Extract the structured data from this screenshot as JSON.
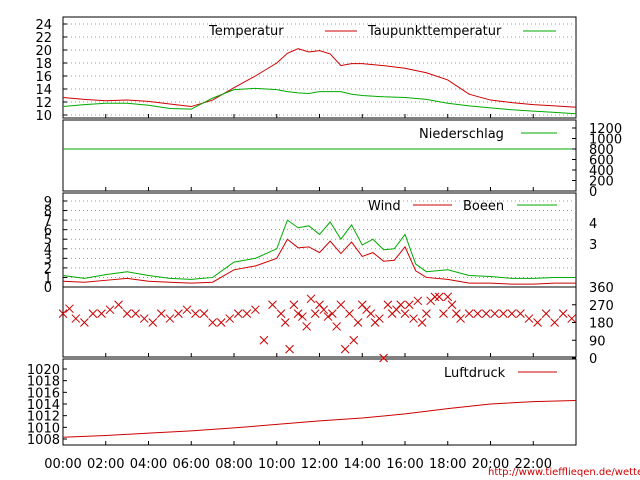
{
  "colors": {
    "red": "#cc0000",
    "green": "#00aa00",
    "grid": "#999999",
    "cross": "#cc0000"
  },
  "source_text": "http://www.tiefflieqen.de/wetter/",
  "x_axis": {
    "ticks": [
      "00:00",
      "02:00",
      "04:00",
      "06:00",
      "08:00",
      "10:00",
      "12:00",
      "14:00",
      "16:00",
      "18:00",
      "20:00",
      "22:00"
    ],
    "tick_hours": [
      0,
      2,
      4,
      6,
      8,
      10,
      12,
      14,
      16,
      18,
      20,
      22
    ],
    "range_hours": [
      0,
      24
    ]
  },
  "chart_data": [
    {
      "type": "line",
      "panel": "temperature",
      "yticks": [
        "10",
        "12",
        "14",
        "16",
        "18",
        "20",
        "22",
        "24"
      ],
      "ylim": [
        9,
        25
      ],
      "legend_placement": "top-right",
      "x": [
        0,
        1,
        2,
        3,
        4,
        5,
        6,
        7,
        8,
        9,
        10,
        10.5,
        11,
        11.5,
        12,
        12.5,
        13,
        13.5,
        14,
        15,
        16,
        17,
        18,
        19,
        20,
        21,
        22,
        23,
        24
      ],
      "series": [
        {
          "name": "Temperatur",
          "color_key": "red",
          "values": [
            12.7,
            12.4,
            12.2,
            12.3,
            12.1,
            11.7,
            11.3,
            12.3,
            14.2,
            16.0,
            18.0,
            19.5,
            20.2,
            19.7,
            19.9,
            19.4,
            17.6,
            17.9,
            17.9,
            17.6,
            17.2,
            16.5,
            15.4,
            13.2,
            12.3,
            11.9,
            11.6,
            11.4,
            11.2
          ]
        },
        {
          "name": "Taupunkttemperatur",
          "color_key": "green",
          "values": [
            11.3,
            11.6,
            11.8,
            11.8,
            11.5,
            11.0,
            10.9,
            12.6,
            13.9,
            14.1,
            13.9,
            13.6,
            13.4,
            13.3,
            13.6,
            13.6,
            13.6,
            13.2,
            13.0,
            12.8,
            12.7,
            12.4,
            11.8,
            11.4,
            11.1,
            10.8,
            10.6,
            10.4,
            10.2
          ]
        }
      ]
    },
    {
      "type": "line",
      "panel": "precipitation",
      "yticks": [
        "0",
        "200",
        "400",
        "600",
        "800",
        "1000",
        "1200"
      ],
      "ylim": [
        0,
        1300
      ],
      "legend_placement": "top-right",
      "x": [
        0,
        24
      ],
      "series": [
        {
          "name": "Niederschlag",
          "color_key": "green",
          "values": [
            800,
            800
          ]
        }
      ]
    },
    {
      "type": "line",
      "panel": "wind",
      "yticks": [
        "0",
        "1",
        "2",
        "3",
        "4",
        "5",
        "6",
        "7",
        "8",
        "9"
      ],
      "ylim": [
        0,
        10
      ],
      "yticks_right": [
        "3",
        "4"
      ],
      "yticks_right_values": [
        4.5,
        6.7
      ],
      "legend_placement": "top-right",
      "x": [
        0,
        1,
        2,
        3,
        4,
        5,
        6,
        7,
        8,
        9,
        10,
        10.5,
        11,
        11.5,
        12,
        12.5,
        13,
        13.5,
        14,
        14.5,
        15,
        15.5,
        16,
        16.5,
        17,
        18,
        19,
        20,
        21,
        22,
        23,
        24
      ],
      "series": [
        {
          "name": "Wind",
          "color_key": "red",
          "values": [
            0.6,
            0.5,
            0.7,
            0.9,
            0.6,
            0.5,
            0.4,
            0.5,
            1.8,
            2.2,
            3.0,
            5.0,
            4.1,
            4.2,
            3.6,
            4.8,
            3.5,
            4.7,
            3.2,
            3.6,
            2.7,
            2.8,
            4.2,
            1.7,
            1.0,
            0.8,
            0.4,
            0.4,
            0.3,
            0.3,
            0.4,
            0.4
          ]
        },
        {
          "name": "Boeen",
          "color_key": "green",
          "values": [
            1.2,
            0.9,
            1.3,
            1.6,
            1.2,
            0.9,
            0.8,
            1.0,
            2.6,
            3.0,
            4.0,
            7.0,
            6.2,
            6.4,
            5.5,
            6.8,
            5.0,
            6.5,
            4.4,
            5.0,
            3.9,
            4.0,
            5.5,
            2.4,
            1.6,
            1.8,
            1.2,
            1.1,
            0.9,
            0.9,
            1.0,
            1.0
          ]
        }
      ]
    },
    {
      "type": "scatter",
      "panel": "wind-direction",
      "yticks_right": [
        "0",
        "90",
        "180",
        "270",
        "360"
      ],
      "ylim": [
        0,
        360
      ],
      "marker": "x",
      "x": [
        0,
        0.3,
        0.6,
        1,
        1.4,
        1.8,
        2.2,
        2.6,
        3,
        3.4,
        3.8,
        4.2,
        4.6,
        5,
        5.4,
        5.8,
        6.2,
        6.6,
        7,
        7.4,
        7.8,
        8.2,
        8.6,
        9,
        9.4,
        9.8,
        10.2,
        10.4,
        10.6,
        10.8,
        11,
        11.2,
        11.4,
        11.6,
        11.8,
        12,
        12.2,
        12.4,
        12.6,
        12.8,
        13,
        13.2,
        13.4,
        13.6,
        13.8,
        14,
        14.2,
        14.4,
        14.6,
        14.8,
        15,
        15.2,
        15.4,
        15.6,
        15.8,
        16,
        16.2,
        16.4,
        16.6,
        16.8,
        17,
        17.2,
        17.4,
        17.6,
        17.8,
        18,
        18.2,
        18.4,
        18.6,
        19,
        19.4,
        19.8,
        20.2,
        20.6,
        21,
        21.4,
        21.8,
        22.2,
        22.6,
        23,
        23.4,
        23.8
      ],
      "values": [
        225,
        250,
        200,
        180,
        225,
        225,
        245,
        270,
        225,
        225,
        200,
        180,
        225,
        200,
        225,
        245,
        225,
        225,
        180,
        180,
        200,
        225,
        225,
        245,
        90,
        270,
        225,
        180,
        45,
        270,
        225,
        210,
        160,
        300,
        225,
        270,
        245,
        210,
        225,
        160,
        270,
        45,
        225,
        90,
        180,
        270,
        245,
        225,
        180,
        200,
        0,
        270,
        225,
        245,
        270,
        225,
        270,
        200,
        290,
        180,
        225,
        290,
        310,
        310,
        225,
        310,
        270,
        225,
        200,
        225,
        225,
        225,
        225,
        225,
        225,
        225,
        200,
        180,
        225,
        180,
        225,
        200
      ]
    },
    {
      "type": "line",
      "panel": "pressure",
      "yticks": [
        "1008",
        "1010",
        "1012",
        "1014",
        "1016",
        "1018",
        "1020"
      ],
      "ylim": [
        1007.5,
        1021
      ],
      "legend_placement": "top-right",
      "x": [
        0,
        2,
        4,
        6,
        8,
        10,
        12,
        14,
        16,
        18,
        20,
        22,
        24
      ],
      "series": [
        {
          "name": "Luftdruck",
          "color_key": "red",
          "values": [
            1008.3,
            1008.6,
            1009.0,
            1009.4,
            1009.9,
            1010.5,
            1011.1,
            1011.6,
            1012.3,
            1013.2,
            1014.0,
            1014.4,
            1014.6
          ]
        }
      ]
    }
  ]
}
